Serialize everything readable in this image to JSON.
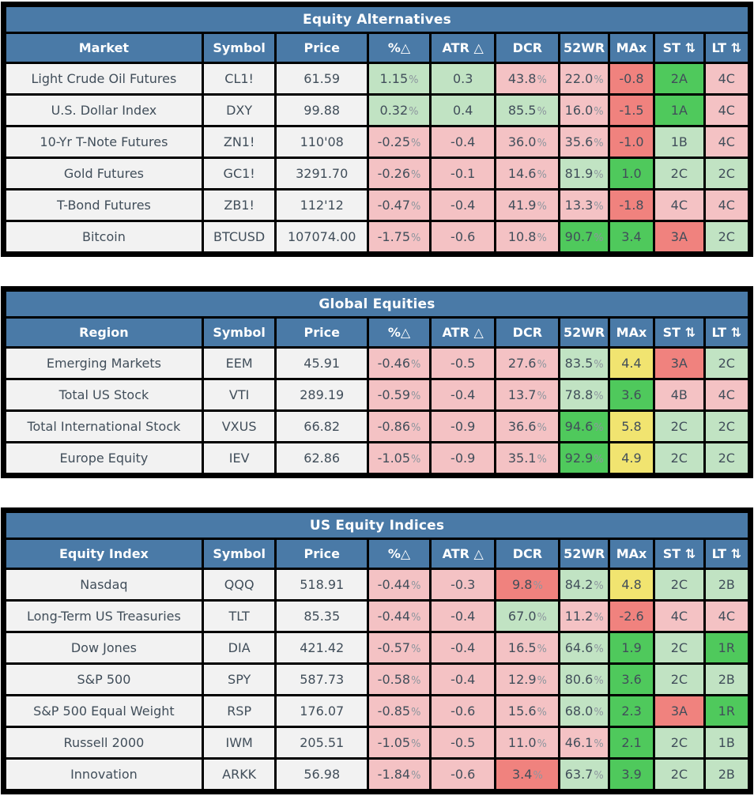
{
  "colors": {
    "header_blue": "#4a7aa7",
    "border_black": "#000000",
    "cell_default_bg": "#f2f2f2",
    "green_light": "#c1e3c3",
    "green_bright": "#4fc95c",
    "pink": "#f4c2c4",
    "red": "#f0827e",
    "yellow": "#f1e470",
    "text_dark": "#414e5a",
    "text_header": "#ffffff",
    "percent_sign_gray": "#8d969e"
  },
  "color_classes": {
    "gl": "green_light",
    "gb": "green_bright",
    "pk": "pink",
    "rd": "red",
    "yl": "yellow"
  },
  "chart_data": [
    {
      "type": "table",
      "title": "Equity Alternatives",
      "columns": [
        {
          "key": "market",
          "label": "Market"
        },
        {
          "key": "symbol",
          "label": "Symbol"
        },
        {
          "key": "price",
          "label": "Price"
        },
        {
          "key": "pct-change",
          "label": "%△"
        },
        {
          "key": "atr-change",
          "label": "ATR △"
        },
        {
          "key": "dcr",
          "label": "DCR"
        },
        {
          "key": "52wr",
          "label": "52WR"
        },
        {
          "key": "max",
          "label": "MAx"
        },
        {
          "key": "st",
          "label": "ST",
          "sort_icon": "⇅"
        },
        {
          "key": "lt",
          "label": "LT",
          "sort_icon": "⇅"
        }
      ],
      "rows": [
        {
          "cells": [
            {
              "t": "Light Crude Oil Futures"
            },
            {
              "t": "CL1!"
            },
            {
              "t": "61.59"
            },
            {
              "t": "1.15%",
              "c": "gl"
            },
            {
              "t": "0.3",
              "c": "gl"
            },
            {
              "t": "43.8%",
              "c": "pk"
            },
            {
              "t": "22.0%",
              "c": "pk"
            },
            {
              "t": "-0.8",
              "c": "rd"
            },
            {
              "t": "2A",
              "c": "gb"
            },
            {
              "t": "4C",
              "c": "pk"
            }
          ]
        },
        {
          "cells": [
            {
              "t": "U.S. Dollar Index"
            },
            {
              "t": "DXY"
            },
            {
              "t": "99.88"
            },
            {
              "t": "0.32%",
              "c": "gl"
            },
            {
              "t": "0.4",
              "c": "gl"
            },
            {
              "t": "85.5%",
              "c": "gl"
            },
            {
              "t": "16.0%",
              "c": "pk"
            },
            {
              "t": "-1.5",
              "c": "rd"
            },
            {
              "t": "1A",
              "c": "gb"
            },
            {
              "t": "4C",
              "c": "pk"
            }
          ]
        },
        {
          "cells": [
            {
              "t": "10-Yr T-Note Futures"
            },
            {
              "t": "ZN1!"
            },
            {
              "t": "110'08"
            },
            {
              "t": "-0.25%",
              "c": "pk"
            },
            {
              "t": "-0.4",
              "c": "pk"
            },
            {
              "t": "36.0%",
              "c": "pk"
            },
            {
              "t": "35.6%",
              "c": "pk"
            },
            {
              "t": "-1.0",
              "c": "rd"
            },
            {
              "t": "1B",
              "c": "gl"
            },
            {
              "t": "4C",
              "c": "pk"
            }
          ]
        },
        {
          "cells": [
            {
              "t": "Gold Futures"
            },
            {
              "t": "GC1!"
            },
            {
              "t": "3291.70"
            },
            {
              "t": "-0.26%",
              "c": "pk"
            },
            {
              "t": "-0.1",
              "c": "pk"
            },
            {
              "t": "14.6%",
              "c": "pk"
            },
            {
              "t": "81.9%",
              "c": "gl"
            },
            {
              "t": "1.0",
              "c": "gb"
            },
            {
              "t": "2C",
              "c": "gl"
            },
            {
              "t": "2C",
              "c": "gl"
            }
          ]
        },
        {
          "cells": [
            {
              "t": "T-Bond Futures"
            },
            {
              "t": "ZB1!"
            },
            {
              "t": "112'12"
            },
            {
              "t": "-0.47%",
              "c": "pk"
            },
            {
              "t": "-0.4",
              "c": "pk"
            },
            {
              "t": "41.9%",
              "c": "pk"
            },
            {
              "t": "13.3%",
              "c": "pk"
            },
            {
              "t": "-1.8",
              "c": "rd"
            },
            {
              "t": "4C",
              "c": "pk"
            },
            {
              "t": "4C",
              "c": "pk"
            }
          ]
        },
        {
          "cells": [
            {
              "t": "Bitcoin"
            },
            {
              "t": "BTCUSD"
            },
            {
              "t": "107074.00"
            },
            {
              "t": "-1.75%",
              "c": "pk"
            },
            {
              "t": "-0.6",
              "c": "pk"
            },
            {
              "t": "10.8%",
              "c": "pk"
            },
            {
              "t": "90.7%",
              "c": "gb"
            },
            {
              "t": "3.4",
              "c": "gb"
            },
            {
              "t": "3A",
              "c": "rd"
            },
            {
              "t": "2C",
              "c": "gl"
            }
          ]
        }
      ]
    },
    {
      "type": "table",
      "title": "Global Equities",
      "columns": [
        {
          "key": "region",
          "label": "Region"
        },
        {
          "key": "symbol",
          "label": "Symbol"
        },
        {
          "key": "price",
          "label": "Price"
        },
        {
          "key": "pct-change",
          "label": "%△"
        },
        {
          "key": "atr-change",
          "label": "ATR △"
        },
        {
          "key": "dcr",
          "label": "DCR"
        },
        {
          "key": "52wr",
          "label": "52WR"
        },
        {
          "key": "max",
          "label": "MAx"
        },
        {
          "key": "st",
          "label": "ST",
          "sort_icon": "⇅"
        },
        {
          "key": "lt",
          "label": "LT",
          "sort_icon": "⇅"
        }
      ],
      "rows": [
        {
          "cells": [
            {
              "t": "Emerging Markets"
            },
            {
              "t": "EEM"
            },
            {
              "t": "45.91"
            },
            {
              "t": "-0.46%",
              "c": "pk"
            },
            {
              "t": "-0.5",
              "c": "pk"
            },
            {
              "t": "27.6%",
              "c": "pk"
            },
            {
              "t": "83.5%",
              "c": "gl"
            },
            {
              "t": "4.4",
              "c": "yl"
            },
            {
              "t": "3A",
              "c": "rd"
            },
            {
              "t": "2C",
              "c": "gl"
            }
          ]
        },
        {
          "cells": [
            {
              "t": "Total US Stock"
            },
            {
              "t": "VTI"
            },
            {
              "t": "289.19"
            },
            {
              "t": "-0.59%",
              "c": "pk"
            },
            {
              "t": "-0.4",
              "c": "pk"
            },
            {
              "t": "13.7%",
              "c": "pk"
            },
            {
              "t": "78.8%",
              "c": "gl"
            },
            {
              "t": "3.6",
              "c": "gb"
            },
            {
              "t": "4B",
              "c": "pk"
            },
            {
              "t": "4C",
              "c": "pk"
            }
          ]
        },
        {
          "cells": [
            {
              "t": "Total International Stock"
            },
            {
              "t": "VXUS"
            },
            {
              "t": "66.82"
            },
            {
              "t": "-0.86%",
              "c": "pk"
            },
            {
              "t": "-0.9",
              "c": "pk"
            },
            {
              "t": "36.6%",
              "c": "pk"
            },
            {
              "t": "94.6%",
              "c": "gb"
            },
            {
              "t": "5.8",
              "c": "yl"
            },
            {
              "t": "2C",
              "c": "gl"
            },
            {
              "t": "2C",
              "c": "gl"
            }
          ]
        },
        {
          "cells": [
            {
              "t": "Europe Equity"
            },
            {
              "t": "IEV"
            },
            {
              "t": "62.86"
            },
            {
              "t": "-1.05%",
              "c": "pk"
            },
            {
              "t": "-0.9",
              "c": "pk"
            },
            {
              "t": "35.1%",
              "c": "pk"
            },
            {
              "t": "92.9%",
              "c": "gb"
            },
            {
              "t": "4.9",
              "c": "yl"
            },
            {
              "t": "2C",
              "c": "gl"
            },
            {
              "t": "2C",
              "c": "gl"
            }
          ]
        }
      ]
    },
    {
      "type": "table",
      "title": "US Equity Indices",
      "columns": [
        {
          "key": "equity-index",
          "label": "Equity Index"
        },
        {
          "key": "symbol",
          "label": "Symbol"
        },
        {
          "key": "price",
          "label": "Price"
        },
        {
          "key": "pct-change",
          "label": "%△"
        },
        {
          "key": "atr-change",
          "label": "ATR △"
        },
        {
          "key": "dcr",
          "label": "DCR"
        },
        {
          "key": "52wr",
          "label": "52WR"
        },
        {
          "key": "max",
          "label": "MAx"
        },
        {
          "key": "st",
          "label": "ST",
          "sort_icon": "⇅"
        },
        {
          "key": "lt",
          "label": "LT",
          "sort_icon": "⇅"
        }
      ],
      "rows": [
        {
          "cells": [
            {
              "t": "Nasdaq"
            },
            {
              "t": "QQQ"
            },
            {
              "t": "518.91"
            },
            {
              "t": "-0.44%",
              "c": "pk"
            },
            {
              "t": "-0.3",
              "c": "pk"
            },
            {
              "t": "9.8%",
              "c": "rd"
            },
            {
              "t": "84.2%",
              "c": "gl"
            },
            {
              "t": "4.8",
              "c": "yl"
            },
            {
              "t": "2C",
              "c": "gl"
            },
            {
              "t": "2B",
              "c": "gl"
            }
          ]
        },
        {
          "cells": [
            {
              "t": "Long-Term US Treasuries"
            },
            {
              "t": "TLT"
            },
            {
              "t": "85.35"
            },
            {
              "t": "-0.44%",
              "c": "pk"
            },
            {
              "t": "-0.4",
              "c": "pk"
            },
            {
              "t": "67.0%",
              "c": "gl"
            },
            {
              "t": "11.2%",
              "c": "pk"
            },
            {
              "t": "-2.6",
              "c": "rd"
            },
            {
              "t": "4C",
              "c": "pk"
            },
            {
              "t": "4C",
              "c": "pk"
            }
          ]
        },
        {
          "cells": [
            {
              "t": "Dow Jones"
            },
            {
              "t": "DIA"
            },
            {
              "t": "421.42"
            },
            {
              "t": "-0.57%",
              "c": "pk"
            },
            {
              "t": "-0.4",
              "c": "pk"
            },
            {
              "t": "16.5%",
              "c": "pk"
            },
            {
              "t": "64.6%",
              "c": "gl"
            },
            {
              "t": "1.9",
              "c": "gb"
            },
            {
              "t": "2C",
              "c": "gl"
            },
            {
              "t": "1R",
              "c": "gb"
            }
          ]
        },
        {
          "cells": [
            {
              "t": "S&P 500"
            },
            {
              "t": "SPY"
            },
            {
              "t": "587.73"
            },
            {
              "t": "-0.58%",
              "c": "pk"
            },
            {
              "t": "-0.4",
              "c": "pk"
            },
            {
              "t": "12.9%",
              "c": "pk"
            },
            {
              "t": "80.6%",
              "c": "gl"
            },
            {
              "t": "3.6",
              "c": "gb"
            },
            {
              "t": "2C",
              "c": "gl"
            },
            {
              "t": "2B",
              "c": "gl"
            }
          ]
        },
        {
          "cells": [
            {
              "t": "S&P 500 Equal Weight"
            },
            {
              "t": "RSP"
            },
            {
              "t": "176.07"
            },
            {
              "t": "-0.85%",
              "c": "pk"
            },
            {
              "t": "-0.6",
              "c": "pk"
            },
            {
              "t": "15.6%",
              "c": "pk"
            },
            {
              "t": "68.0%",
              "c": "gl"
            },
            {
              "t": "2.3",
              "c": "gb"
            },
            {
              "t": "3A",
              "c": "rd"
            },
            {
              "t": "1R",
              "c": "gb"
            }
          ]
        },
        {
          "cells": [
            {
              "t": "Russell 2000"
            },
            {
              "t": "IWM"
            },
            {
              "t": "205.51"
            },
            {
              "t": "-1.05%",
              "c": "pk"
            },
            {
              "t": "-0.5",
              "c": "pk"
            },
            {
              "t": "11.0%",
              "c": "pk"
            },
            {
              "t": "46.1%",
              "c": "pk"
            },
            {
              "t": "2.1",
              "c": "gb"
            },
            {
              "t": "2C",
              "c": "gl"
            },
            {
              "t": "1B",
              "c": "gl"
            }
          ]
        },
        {
          "cells": [
            {
              "t": "Innovation"
            },
            {
              "t": "ARKK"
            },
            {
              "t": "56.98"
            },
            {
              "t": "-1.84%",
              "c": "pk"
            },
            {
              "t": "-0.6",
              "c": "pk"
            },
            {
              "t": "3.4%",
              "c": "rd"
            },
            {
              "t": "63.7%",
              "c": "gl"
            },
            {
              "t": "3.9",
              "c": "gb"
            },
            {
              "t": "2C",
              "c": "gl"
            },
            {
              "t": "2B",
              "c": "gl"
            }
          ]
        }
      ]
    }
  ]
}
